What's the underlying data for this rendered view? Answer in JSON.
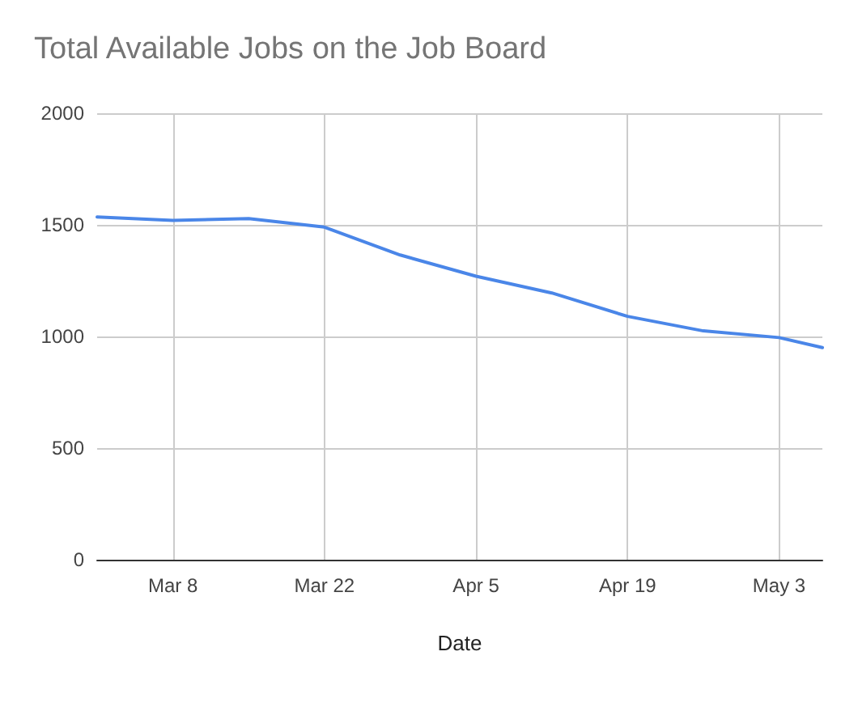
{
  "chart_data": {
    "type": "line",
    "title": "Total Available Jobs on the Job Board",
    "xlabel": "Date",
    "x": [
      "--03-01",
      "--03-08",
      "--03-15",
      "--03-22",
      "--03-29",
      "--04-05",
      "--04-12",
      "--04-19",
      "--04-26",
      "--05-03",
      "--05-07"
    ],
    "series": [
      {
        "color": "#4a86e8",
        "values": [
          1535,
          1520,
          1528,
          1490,
          1365,
          1270,
          1195,
          1090,
          1025,
          995,
          950
        ]
      }
    ],
    "xlim": [
      "--03-01",
      "--05-07"
    ],
    "xticks": [
      {
        "value": "--03-08",
        "label": "Mar 8"
      },
      {
        "value": "--03-22",
        "label": "Mar 22"
      },
      {
        "value": "--04-05",
        "label": "Apr 5"
      },
      {
        "value": "--04-19",
        "label": "Apr 19"
      },
      {
        "value": "--05-03",
        "label": "May 3"
      }
    ],
    "ylim": [
      0,
      2000
    ],
    "yticks": [
      0,
      500,
      1000,
      1500,
      2000
    ],
    "grid": true,
    "marker": "none",
    "line_style": "solid"
  }
}
